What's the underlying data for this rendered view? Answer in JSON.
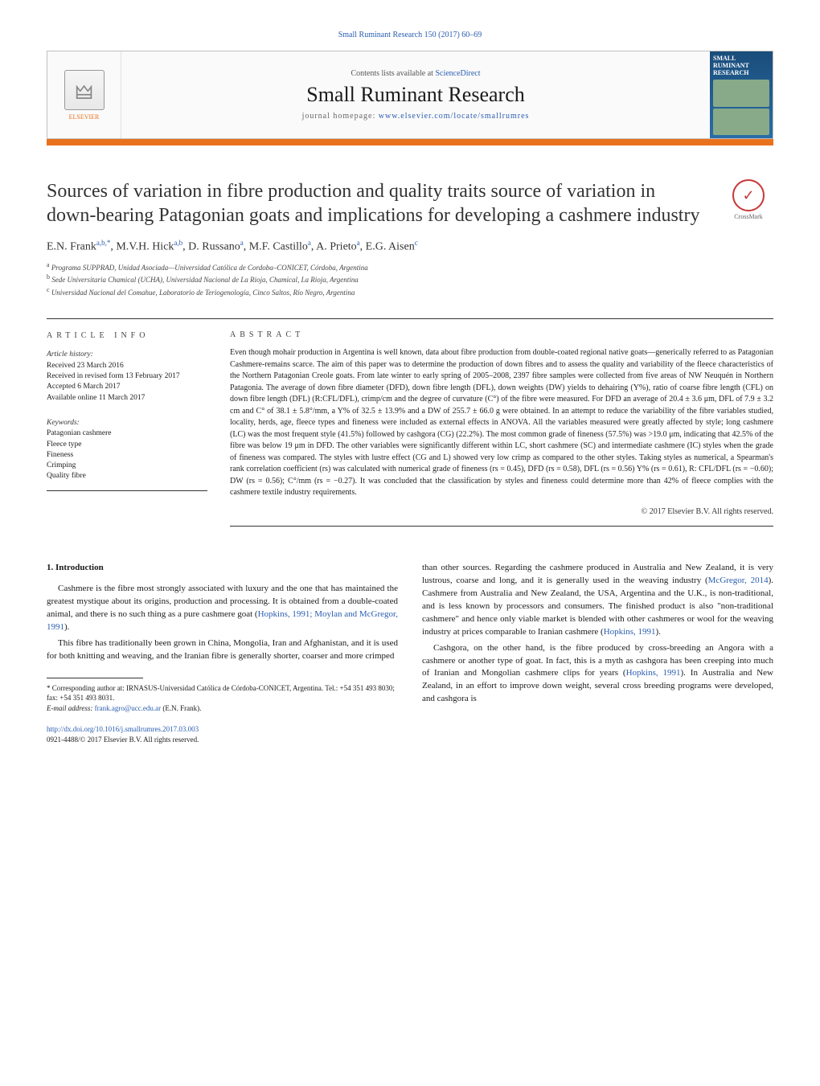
{
  "header": {
    "citation": "Small Ruminant Research 150 (2017) 60–69",
    "contents_prefix": "Contents lists available at ",
    "contents_link": "ScienceDirect",
    "journal_name": "Small Ruminant Research",
    "homepage_prefix": "journal homepage: ",
    "homepage_url": "www.elsevier.com/locate/smallrumres",
    "publisher_name": "ELSEVIER",
    "cover_title": "SMALL RUMINANT RESEARCH"
  },
  "crossmark": {
    "label": "CrossMark"
  },
  "title": "Sources of variation in fibre production and quality traits source of variation in down-bearing Patagonian goats and implications for developing a cashmere industry",
  "authors_html": "E.N. Frank<sup>a,b,*</sup>, M.V.H. Hick<sup>a,b</sup>, D. Russano<sup>a</sup>, M.F. Castillo<sup>a</sup>, A. Prieto<sup>a</sup>, E.G. Aisen<sup>c</sup>",
  "affiliations": {
    "a": "Programa SUPPRAD, Unidad Asociada—Universidad Católica de Cordoba–CONICET, Córdoba, Argentina",
    "b": "Sede Universitaria Chamical (UCHA), Universidad Nacional de La Rioja, Chamical, La Rioja, Argentina",
    "c": "Universidad Nacional del Comahue, Laboratorio de Teriogenología, Cinco Saltos, Río Negro, Argentina"
  },
  "info": {
    "label": "ARTICLE INFO",
    "history_head": "Article history:",
    "received": "Received 23 March 2016",
    "revised": "Received in revised form 13 February 2017",
    "accepted": "Accepted 6 March 2017",
    "online": "Available online 11 March 2017",
    "keywords_head": "Keywords:",
    "keywords": [
      "Patagonian cashmere",
      "Fleece type",
      "Fineness",
      "Crimping",
      "Quality fibre"
    ]
  },
  "abstract": {
    "label": "ABSTRACT",
    "text": "Even though mohair production in Argentina is well known, data about fibre production from double-coated regional native goats—generically referred to as Patagonian Cashmere-remains scarce. The aim of this paper was to determine the production of down fibres and to assess the quality and variability of the fleece characteristics of the Northern Patagonian Creole goats. From late winter to early spring of 2005–2008, 2397 fibre samples were collected from five areas of NW Neuquén in Northern Patagonia. The average of down fibre diameter (DFD), down fibre length (DFL), down weights (DW) yields to dehairing (Y%), ratio of coarse fibre length (CFL) on down fibre length (DFL) (R:CFL/DFL), crimp/cm and the degree of curvature (C°) of the fibre were measured. For DFD an average of 20.4 ± 3.6 μm, DFL of 7.9 ± 3.2 cm and C° of 38.1 ± 5.8°/mm, a Y% of 32.5 ± 13.9% and a DW of 255.7 ± 66.0 g were obtained. In an attempt to reduce the variability of the fibre variables studied, locality, herds, age, fleece types and fineness were included as external effects in ANOVA. All the variables measured were greatly affected by style; long cashmere (LC) was the most frequent style (41.5%) followed by cashgora (CG) (22.2%). The most common grade of fineness (57.5%) was >19.0 μm, indicating that 42.5% of the fibre was below 19 μm in DFD. The other variables were significantly different within LC, short cashmere (SC) and intermediate cashmere (IC) styles when the grade of fineness was compared. The styles with lustre effect (CG and L) showed very low crimp as compared to the other styles. Taking styles as numerical, a Spearman's rank correlation coefficient (rs) was calculated with numerical grade of fineness (rs = 0.45), DFD (rs = 0.58), DFL (rs = 0.56) Y% (rs = 0.61), R: CFL/DFL (rs = −0.60); DW (rs = 0.56); C°/mm (rs = −0.27). It was concluded that the classification by styles and fineness could determine more than 42% of fleece complies with the cashmere textile industry requirements.",
    "copyright": "© 2017 Elsevier B.V. All rights reserved."
  },
  "body": {
    "section_number": "1.",
    "section_title": "Introduction",
    "left_p1": "Cashmere is the fibre most strongly associated with luxury and the one that has maintained the greatest mystique about its origins, production and processing. It is obtained from a double-coated animal, and there is no such thing as a pure cashmere goat (",
    "left_p1_link": "Hopkins, 1991; Moylan and McGregor, 1991",
    "left_p1_end": ").",
    "left_p2": "This fibre has traditionally been grown in China, Mongolia, Iran and Afghanistan, and it is used for both knitting and weaving, and the Iranian fibre is generally shorter, coarser and more crimped",
    "right_p1_a": "than other sources. Regarding the cashmere produced in Australia and New Zealand, it is very lustrous, coarse and long, and it is generally used in the weaving industry (",
    "right_p1_link1": "McGregor, 2014",
    "right_p1_b": "). Cashmere from Australia and New Zealand, the USA, Argentina and the U.K., is non-traditional, and is less known by processors and consumers. The finished product is also \"non-traditional cashmere\" and hence only viable market is blended with other cashmeres or wool for the weaving industry at prices comparable to Iranian cashmere (",
    "right_p1_link2": "Hopkins, 1991",
    "right_p1_c": ").",
    "right_p2_a": "Cashgora, on the other hand, is the fibre produced by cross-breeding an Angora with a cashmere or another type of goat. In fact, this is a myth as cashgora has been creeping into much of Iranian and Mongolian cashmere clips for years (",
    "right_p2_link": "Hopkins, 1991",
    "right_p2_b": "). In Australia and New Zealand, in an effort to improve down weight, several cross breeding programs were developed, and cashgora is"
  },
  "footnotes": {
    "corr": "* Corresponding author at: IRNASUS-Universidad Católica de Córdoba-CONICET, Argentina. Tel.: +54 351 493 8030; fax: +54 351 493 8031.",
    "email_label": "E-mail address: ",
    "email": "frank.agro@ucc.edu.ar",
    "email_who": " (E.N. Frank)."
  },
  "footer": {
    "doi": "http://dx.doi.org/10.1016/j.smallrumres.2017.03.003",
    "issn_line": "0921-4488/© 2017 Elsevier B.V. All rights reserved."
  },
  "colors": {
    "link": "#2a5db0",
    "accent": "#e9711c",
    "text": "#1a1a1a"
  }
}
